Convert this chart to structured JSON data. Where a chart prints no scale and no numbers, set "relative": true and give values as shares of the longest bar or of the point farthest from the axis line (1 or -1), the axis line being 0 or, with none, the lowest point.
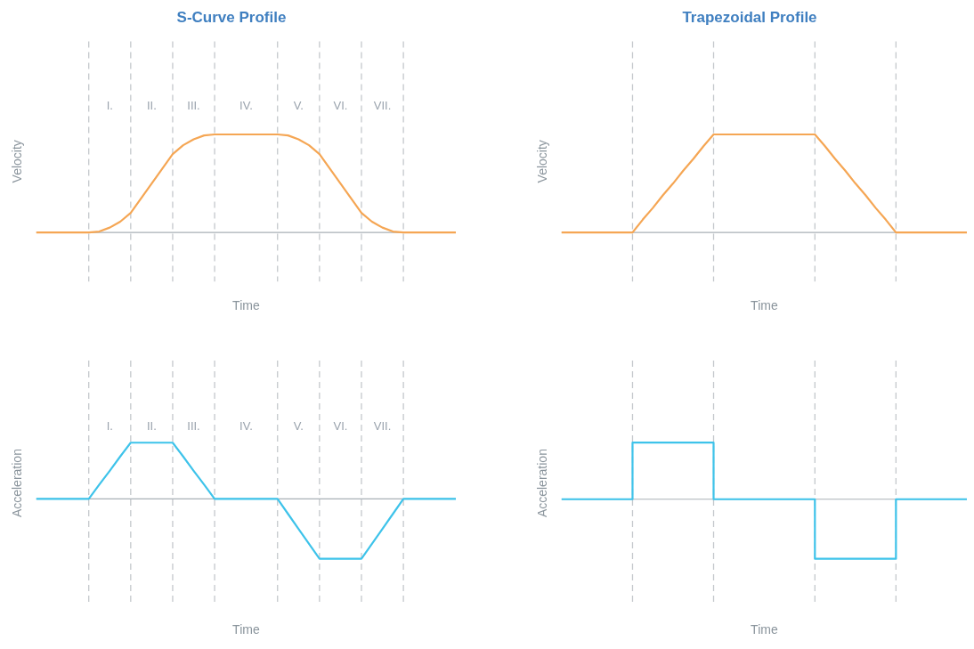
{
  "chart_data": [
    {
      "type": "line",
      "title": "S-Curve Profile",
      "xlabel": "Time",
      "ylabel": "Velocity",
      "relative": true,
      "legend": false,
      "marker": "none",
      "line_style": "solid",
      "grid": "x",
      "categories": [
        null,
        null,
        null,
        null,
        null,
        null,
        null,
        null,
        null,
        null,
        null,
        null,
        null,
        null,
        null,
        null,
        null,
        null,
        null,
        null,
        null,
        null,
        null,
        null,
        null,
        null,
        null,
        null,
        null,
        null,
        null,
        null,
        null,
        null,
        null,
        null,
        null,
        null,
        null,
        null,
        null
      ],
      "series": [
        {
          "color": "#f5a654",
          "values": [
            0,
            0,
            0,
            0,
            0,
            0,
            0.01,
            0.05,
            0.11,
            0.2,
            0.35,
            0.5,
            0.65,
            0.8,
            0.89,
            0.95,
            0.99,
            1,
            1,
            1,
            1,
            1,
            1,
            1,
            0.99,
            0.95,
            0.89,
            0.8,
            0.65,
            0.5,
            0.35,
            0.2,
            0.11,
            0.05,
            0.01,
            0,
            0,
            0,
            0,
            0,
            0
          ]
        }
      ],
      "annotations": [
        "I.",
        "II.",
        "III.",
        "IV.",
        "V.",
        "VI.",
        "VII."
      ]
    },
    {
      "type": "line",
      "title": "Trapezoidal Profile",
      "xlabel": "Time",
      "ylabel": "Velocity",
      "relative": true,
      "legend": false,
      "marker": "none",
      "line_style": "solid",
      "grid": "x",
      "categories": [
        null,
        null,
        null,
        null,
        null,
        null,
        null,
        null,
        null,
        null,
        null,
        null,
        null,
        null,
        null,
        null,
        null,
        null,
        null,
        null,
        null,
        null,
        null,
        null,
        null,
        null,
        null,
        null,
        null,
        null,
        null,
        null,
        null,
        null,
        null,
        null,
        null,
        null,
        null,
        null,
        null
      ],
      "series": [
        {
          "color": "#f5a654",
          "values": [
            0,
            0,
            0,
            0,
            0,
            0,
            0,
            0,
            0.13,
            0.25,
            0.38,
            0.5,
            0.63,
            0.75,
            0.88,
            1,
            1,
            1,
            1,
            1,
            1,
            1,
            1,
            1,
            1,
            1,
            0.88,
            0.75,
            0.63,
            0.5,
            0.38,
            0.25,
            0.13,
            0,
            0,
            0,
            0,
            0,
            0,
            0,
            0
          ]
        }
      ]
    },
    {
      "type": "line",
      "xlabel": "Time",
      "ylabel": "Acceleration",
      "relative": true,
      "legend": false,
      "marker": "none",
      "line_style": "solid",
      "grid": "x",
      "categories": [
        null,
        null,
        null,
        null,
        null,
        null,
        null,
        null,
        null,
        null,
        null,
        null,
        null,
        null,
        null,
        null,
        null,
        null,
        null,
        null,
        null,
        null,
        null,
        null,
        null,
        null,
        null,
        null,
        null,
        null,
        null,
        null,
        null,
        null,
        null,
        null,
        null,
        null,
        null,
        null,
        null
      ],
      "series": [
        {
          "color": "#3ec3ea",
          "values": [
            0,
            0,
            0,
            0,
            0,
            0,
            0.24,
            0.47,
            0.71,
            0.94,
            0.94,
            0.94,
            0.94,
            0.94,
            0.71,
            0.47,
            0.24,
            0,
            0,
            0,
            0,
            0,
            0,
            0,
            -0.25,
            -0.5,
            -0.75,
            -1,
            -1,
            -1,
            -1,
            -1,
            -0.75,
            -0.5,
            -0.25,
            0,
            0,
            0,
            0,
            0,
            0
          ]
        }
      ],
      "annotations": [
        "I.",
        "II.",
        "III.",
        "IV.",
        "V.",
        "VI.",
        "VII."
      ]
    },
    {
      "type": "step",
      "xlabel": "Time",
      "ylabel": "Acceleration",
      "relative": true,
      "legend": false,
      "marker": "none",
      "line_style": "solid",
      "grid": "x",
      "categories": [
        null,
        null,
        null,
        null,
        null,
        null,
        null,
        null,
        null,
        null,
        null,
        null,
        null,
        null,
        null,
        null,
        null,
        null,
        null,
        null,
        null,
        null,
        null,
        null,
        null,
        null,
        null,
        null,
        null,
        null,
        null,
        null,
        null,
        null,
        null,
        null,
        null,
        null,
        null,
        null,
        null
      ],
      "series": [
        {
          "color": "#3ec3ea",
          "values": [
            0,
            0,
            0,
            0,
            0,
            0,
            0,
            0.95,
            0.95,
            0.95,
            0.95,
            0.95,
            0.95,
            0.95,
            0.95,
            0,
            0,
            0,
            0,
            0,
            0,
            0,
            0,
            0,
            0,
            -1,
            -1,
            -1,
            -1,
            -1,
            -1,
            -1,
            -1,
            0,
            0,
            0,
            0,
            0,
            0,
            0,
            0
          ]
        }
      ]
    }
  ]
}
